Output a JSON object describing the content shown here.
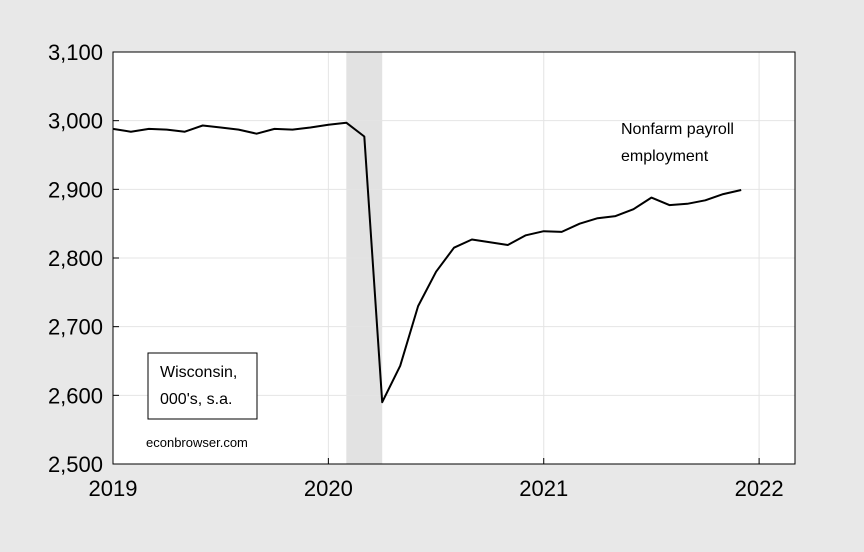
{
  "chart_data": {
    "type": "line",
    "title": "",
    "xlabel": "",
    "ylabel": "",
    "ylim": [
      2500,
      3100
    ],
    "xlim": [
      "2019-01",
      "2022-03"
    ],
    "y_ticks": [
      2500,
      2600,
      2700,
      2800,
      2900,
      3000,
      3100
    ],
    "y_tick_labels": [
      "2,500",
      "2,600",
      "2,700",
      "2,800",
      "2,900",
      "3,000",
      "3,100"
    ],
    "x_ticks": [
      "2019-01",
      "2020-01",
      "2021-01",
      "2022-01"
    ],
    "x_tick_labels": [
      "2019",
      "2020",
      "2021",
      "2022"
    ],
    "grid": true,
    "recession_band": {
      "start": "2020-02",
      "end": "2020-04",
      "color": "#e2e2e2"
    },
    "series": [
      {
        "name": "Nonfarm payroll employment",
        "color": "#000000",
        "x": [
          "2019-01",
          "2019-02",
          "2019-03",
          "2019-04",
          "2019-05",
          "2019-06",
          "2019-07",
          "2019-08",
          "2019-09",
          "2019-10",
          "2019-11",
          "2019-12",
          "2020-01",
          "2020-02",
          "2020-03",
          "2020-04",
          "2020-05",
          "2020-06",
          "2020-07",
          "2020-08",
          "2020-09",
          "2020-10",
          "2020-11",
          "2020-12",
          "2021-01",
          "2021-02",
          "2021-03",
          "2021-04",
          "2021-05",
          "2021-06",
          "2021-07",
          "2021-08",
          "2021-09",
          "2021-10",
          "2021-11",
          "2021-12"
        ],
        "values": [
          2988,
          2984,
          2988,
          2987,
          2984,
          2993,
          2990,
          2987,
          2981,
          2988,
          2987,
          2990,
          2994,
          2997,
          2977,
          2590,
          2643,
          2730,
          2780,
          2815,
          2827,
          2823,
          2819,
          2833,
          2839,
          2838,
          2850,
          2858,
          2861,
          2871,
          2888,
          2877,
          2879,
          2884,
          2893,
          2899
        ]
      }
    ],
    "annotations": {
      "series_label_line1": "Nonfarm payroll",
      "series_label_line2": "employment",
      "box_line1": "Wisconsin,",
      "box_line2": "000's, s.a.",
      "source": "econbrowser.com"
    }
  }
}
